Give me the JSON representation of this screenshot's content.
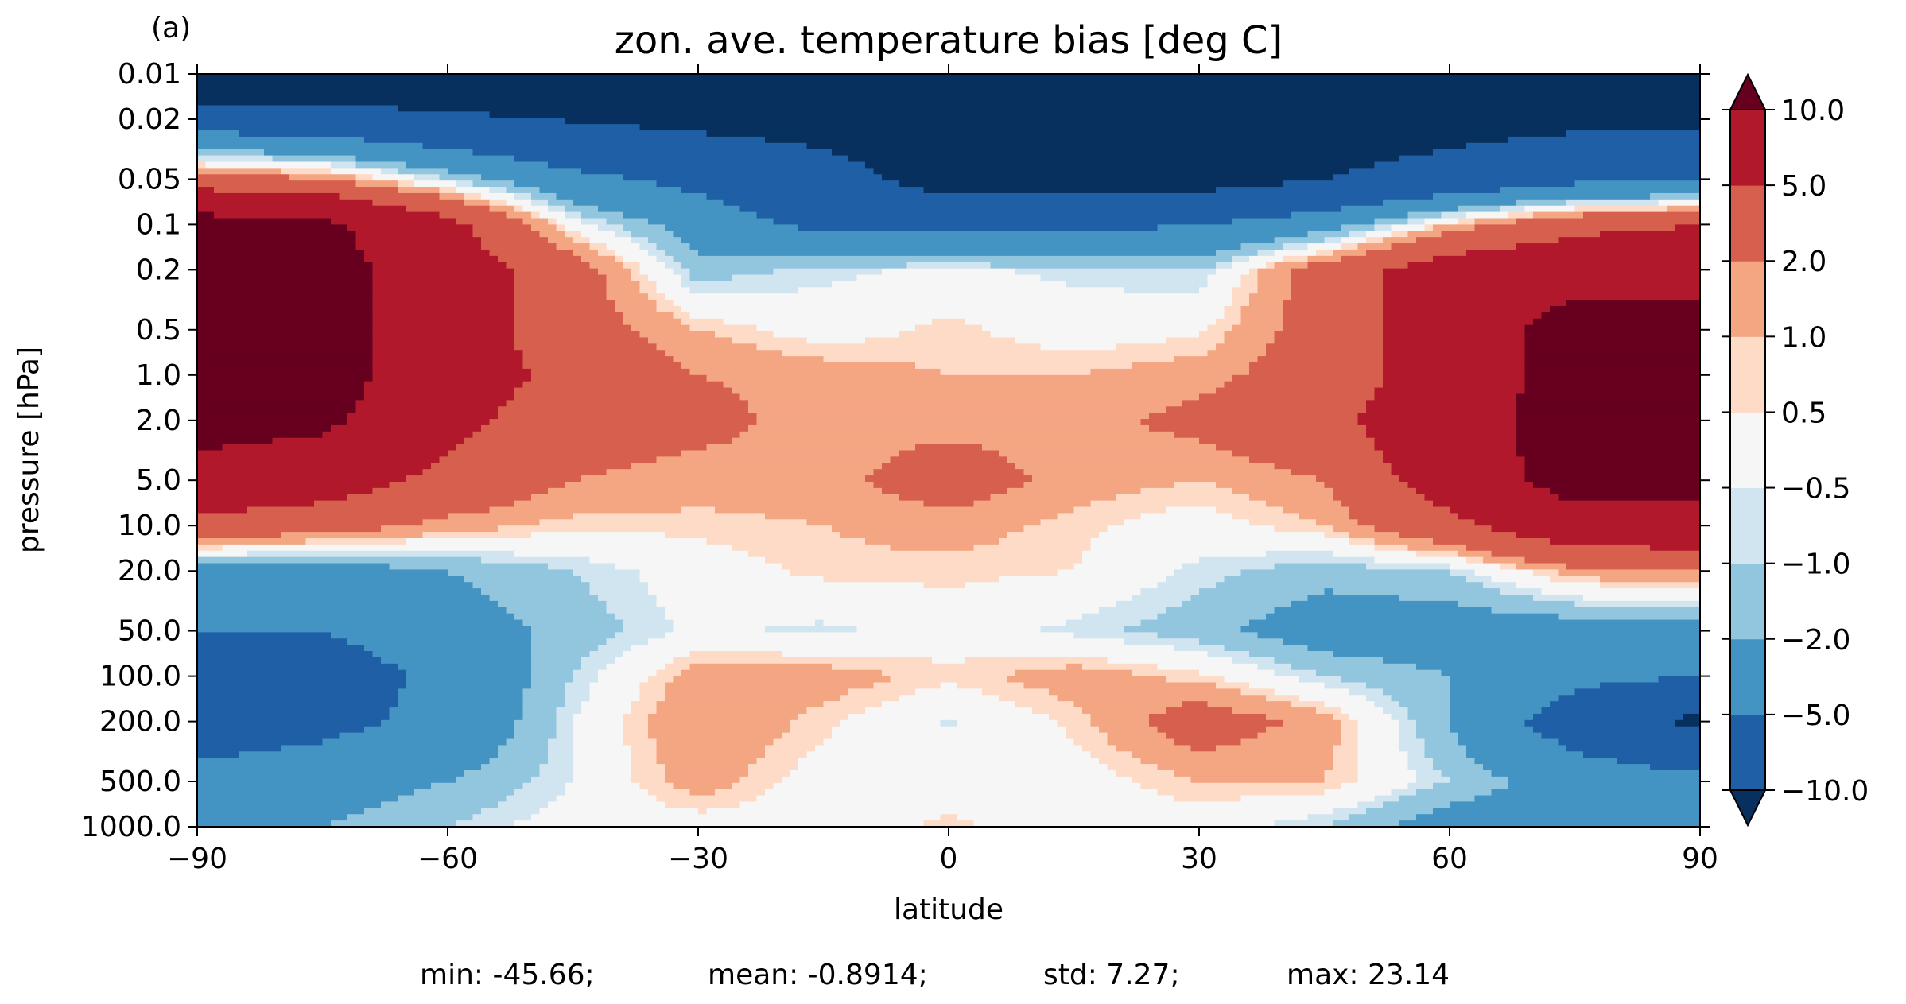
{
  "panel_label": "(a)",
  "stats": {
    "min": "min: -45.66;",
    "mean": "mean: -0.8914;",
    "std": "std: 7.27;",
    "max": "max: 23.14"
  },
  "chart_data": {
    "type": "heatmap",
    "title": "zon. ave. temperature bias [deg C]",
    "xlabel": "latitude",
    "ylabel": "pressure [hPa]",
    "xlim": [
      -90,
      90
    ],
    "x_ticks": [
      -90,
      -60,
      -30,
      0,
      30,
      60,
      90
    ],
    "x_tick_labels": [
      "−90",
      "−60",
      "−30",
      "0",
      "30",
      "60",
      "90"
    ],
    "y_scale": "log",
    "y_inverted": true,
    "ylim": [
      1000,
      0.01
    ],
    "y_ticks": [
      0.01,
      0.02,
      0.05,
      0.1,
      0.2,
      0.5,
      1.0,
      2.0,
      5.0,
      10.0,
      20.0,
      50.0,
      100.0,
      200.0,
      500.0,
      1000.0
    ],
    "y_tick_labels": [
      "0.01",
      "0.02",
      "0.05",
      "0.1",
      "0.2",
      "0.5",
      "1.0",
      "2.0",
      "5.0",
      "10.0",
      "20.0",
      "50.0",
      "100.0",
      "200.0",
      "500.0",
      "1000.0"
    ],
    "colorbar": {
      "levels": [
        -10.0,
        -5.0,
        -2.0,
        -1.0,
        -0.5,
        0.5,
        1.0,
        2.0,
        5.0,
        10.0
      ],
      "tick_labels": [
        "−10.0",
        "−5.0",
        "−2.0",
        "−1.0",
        "−0.5",
        "0.5",
        "1.0",
        "2.0",
        "5.0",
        "10.0"
      ],
      "colors": [
        "#1f5fa6",
        "#4393c3",
        "#92c5de",
        "#d1e5f0",
        "#f5f6f5",
        "#fddbc7",
        "#f4a582",
        "#d6604d",
        "#b2182b"
      ],
      "under_color": "#08305e",
      "over_color": "#67001f",
      "extend": "both"
    },
    "fields": {
      "regions_note_free": true,
      "latitudes": [
        -90,
        -75,
        -60,
        -45,
        -30,
        -15,
        0,
        15,
        30,
        45,
        60,
        75,
        90
      ],
      "pressure_levels": [
        0.01,
        0.05,
        0.1,
        0.2,
        0.5,
        1.0,
        2.0,
        5.0,
        10.0,
        20.0,
        50.0,
        100.0,
        200.0,
        500.0,
        1000.0
      ],
      "values": [
        [
          -15,
          -15,
          -15,
          -15,
          -15,
          -15,
          -15,
          -15,
          -15,
          -15,
          -15,
          -15,
          -15
        ],
        [
          3,
          2,
          -1,
          -4,
          -6,
          -8,
          -12,
          -12,
          -12,
          -10,
          -8,
          -6,
          -6
        ],
        [
          12,
          11,
          6,
          0,
          -3,
          -6,
          -6,
          -6,
          -5,
          -3,
          1,
          4,
          5
        ],
        [
          12,
          12,
          7,
          3,
          -1.5,
          -0.7,
          -0.3,
          -0.7,
          -1,
          3,
          7,
          8,
          8
        ],
        [
          12,
          12,
          7,
          3,
          1,
          0,
          0.7,
          0,
          0.3,
          3,
          7,
          12,
          12
        ],
        [
          12,
          12,
          7,
          4,
          2,
          1.5,
          1,
          1,
          1.5,
          3,
          7,
          12,
          12
        ],
        [
          12,
          11,
          6,
          3,
          2.5,
          1.5,
          1.5,
          1.5,
          2.5,
          4,
          8,
          12,
          12
        ],
        [
          8,
          7,
          4,
          2,
          1.5,
          1.5,
          3,
          1.5,
          1,
          2,
          7,
          12,
          12
        ],
        [
          4,
          3,
          1.5,
          0.7,
          0.7,
          1,
          1.5,
          0.7,
          0,
          1,
          4,
          8,
          8
        ],
        [
          -3,
          -3,
          -2,
          -1,
          0,
          0.7,
          0.7,
          0.5,
          -0.7,
          -1.5,
          -1,
          1.5,
          2
        ],
        [
          -5,
          -5,
          -3,
          -1.5,
          -0.3,
          -0.7,
          0,
          -0.7,
          -1.5,
          -3,
          -3,
          -3,
          -3
        ],
        [
          -7,
          -7,
          -4,
          -1,
          1.5,
          1.5,
          0.7,
          1.5,
          0.7,
          -1,
          -2,
          -4,
          -5
        ],
        [
          -7,
          -6,
          -4,
          -0.5,
          2,
          0.7,
          -0.6,
          0.7,
          3,
          1.5,
          -2,
          -7,
          -11
        ],
        [
          -4,
          -3,
          -2,
          -0.5,
          1.5,
          0,
          0,
          0,
          1,
          1,
          -1,
          -3,
          -4
        ],
        [
          -3,
          -2,
          -1,
          0,
          0,
          0,
          0.7,
          0,
          0,
          -1,
          -3,
          -3,
          -3
        ]
      ]
    }
  }
}
